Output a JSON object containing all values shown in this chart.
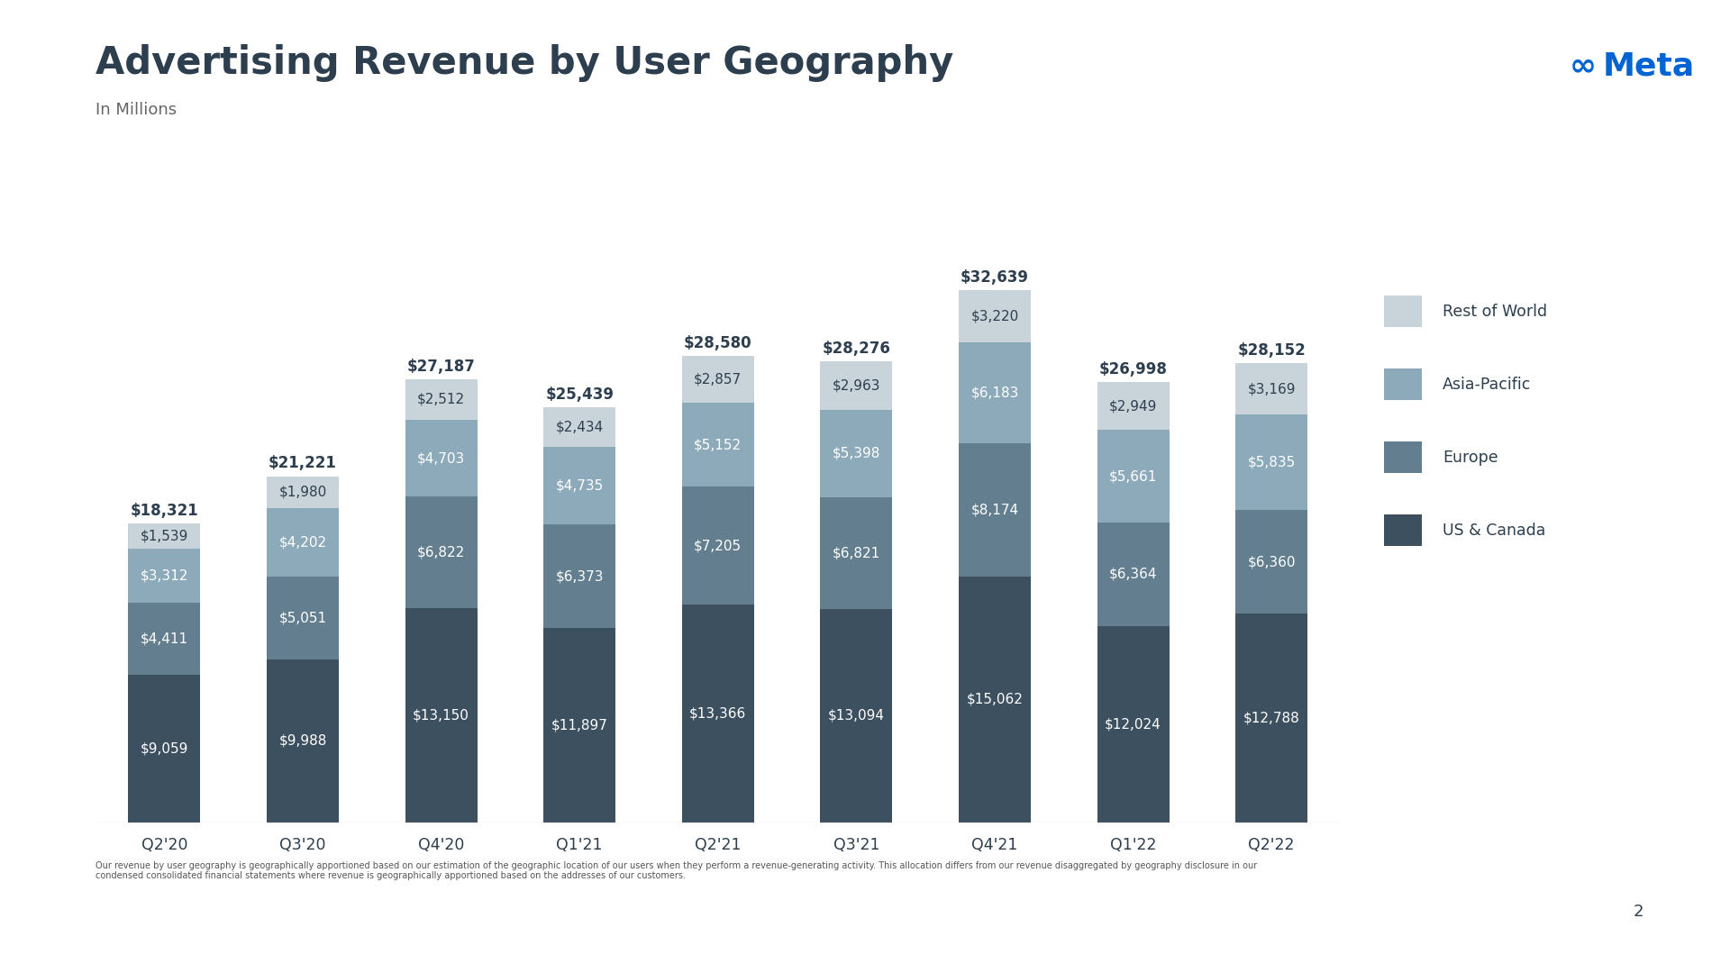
{
  "title": "Advertising Revenue by User Geography",
  "subtitle": "In Millions",
  "quarters": [
    "Q2'20",
    "Q3'20",
    "Q4'20",
    "Q1'21",
    "Q2'21",
    "Q3'21",
    "Q4'21",
    "Q1'22",
    "Q2'22"
  ],
  "us_canada": [
    9059,
    9988,
    13150,
    11897,
    13366,
    13094,
    15062,
    12024,
    12788
  ],
  "europe": [
    4411,
    5051,
    6822,
    6373,
    7205,
    6821,
    8174,
    6364,
    6360
  ],
  "asia_pacific": [
    3312,
    4202,
    4703,
    4735,
    5152,
    5398,
    6183,
    5661,
    5835
  ],
  "rest_of_world": [
    1539,
    1980,
    2512,
    2434,
    2857,
    2963,
    3220,
    2949,
    3169
  ],
  "totals": [
    18321,
    21221,
    27187,
    25439,
    28580,
    28276,
    32639,
    26998,
    28152
  ],
  "color_us": "#3d5060",
  "color_europe": "#637e8e",
  "color_asia": "#8daaba",
  "color_row": "#c8d3da",
  "bg_color": "#ffffff",
  "title_color": "#2d3e4e",
  "subtitle_color": "#666666",
  "label_color_dark": "#2d3e4e",
  "label_color_light": "#ffffff",
  "legend_labels": [
    "Rest of World",
    "Asia-Pacific",
    "Europe",
    "US & Canada"
  ],
  "footnote": "Our revenue by user geography is geographically apportioned based on our estimation of the geographic location of our users when they perform a revenue-generating activity. This allocation differs from our revenue disaggregated by geography disclosure in our\ncondensed consolidated financial statements where revenue is geographically apportioned based on the addresses of our customers.",
  "page_number": "2",
  "meta_color": "#0064d3"
}
